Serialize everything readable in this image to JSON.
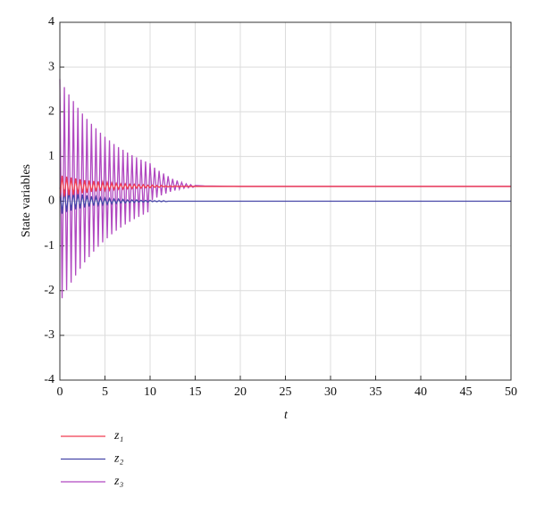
{
  "chart_data": {
    "type": "line",
    "x_label": "t",
    "y_label": "State variables",
    "x": [
      0,
      0.25,
      0.5,
      0.75,
      1,
      1.25,
      1.5,
      1.75,
      2,
      2.25,
      2.5,
      2.75,
      3,
      3.25,
      3.5,
      3.75,
      4,
      4.25,
      4.5,
      4.75,
      5,
      5.25,
      5.5,
      5.75,
      6,
      6.25,
      6.5,
      6.75,
      7,
      7.25,
      7.5,
      7.75,
      8,
      8.25,
      8.5,
      8.75,
      9,
      9.25,
      9.5,
      9.75,
      10,
      10.25,
      10.5,
      10.75,
      11,
      11.25,
      11.5,
      11.75,
      12,
      12.25,
      12.5,
      12.75,
      13,
      13.25,
      13.5,
      13.75,
      14,
      14.25,
      14.5,
      14.75,
      15,
      16,
      20,
      30,
      40,
      50
    ],
    "series": [
      {
        "name": "z₁",
        "color": "#f03c50",
        "values": [
          0.08,
          0.57,
          0.1,
          0.55,
          0.13,
          0.53,
          0.14,
          0.51,
          0.16,
          0.49,
          0.18,
          0.47,
          0.19,
          0.46,
          0.21,
          0.45,
          0.22,
          0.44,
          0.23,
          0.43,
          0.24,
          0.42,
          0.25,
          0.41,
          0.26,
          0.4,
          0.27,
          0.39,
          0.27,
          0.39,
          0.28,
          0.38,
          0.28,
          0.38,
          0.29,
          0.37,
          0.29,
          0.37,
          0.3,
          0.36,
          0.3,
          0.36,
          0.31,
          0.35,
          0.31,
          0.35,
          0.32,
          0.34,
          0.32,
          0.34,
          0.32,
          0.34,
          0.33,
          0.33,
          0.33,
          0.33,
          0.33,
          0.33,
          0.33,
          0.33,
          0.33,
          0.33,
          0.33,
          0.33,
          0.33,
          0.33
        ]
      },
      {
        "name": "z₂",
        "color": "#4646a8",
        "values": [
          0.3,
          -0.28,
          0.26,
          -0.24,
          0.23,
          -0.21,
          0.2,
          -0.18,
          0.17,
          -0.16,
          0.15,
          -0.14,
          0.13,
          -0.12,
          0.11,
          -0.1,
          0.1,
          -0.09,
          0.08,
          -0.08,
          0.07,
          -0.07,
          0.06,
          -0.06,
          0.05,
          -0.05,
          0.05,
          -0.04,
          0.04,
          -0.04,
          0.03,
          -0.03,
          0.03,
          -0.03,
          0.03,
          -0.02,
          0.02,
          -0.02,
          0.02,
          -0.02,
          0.02,
          -0.01,
          0.01,
          -0.01,
          0.01,
          -0.01,
          0.01,
          -0.01,
          0,
          0,
          0,
          0,
          0,
          0,
          0,
          0,
          0,
          0,
          0,
          0,
          0,
          0,
          0,
          0,
          0,
          0
        ]
      },
      {
        "name": "z₃",
        "color": "#b048c0",
        "values": [
          2.73,
          -2.17,
          2.55,
          -1.99,
          2.39,
          -1.82,
          2.24,
          -1.66,
          2.09,
          -1.51,
          1.96,
          -1.37,
          1.84,
          -1.25,
          1.73,
          -1.13,
          1.63,
          -1.02,
          1.53,
          -0.92,
          1.44,
          -0.83,
          1.36,
          -0.74,
          1.28,
          -0.66,
          1.21,
          -0.59,
          1.15,
          -0.52,
          1.09,
          -0.46,
          1.03,
          -0.4,
          0.98,
          -0.35,
          0.93,
          -0.3,
          0.89,
          -0.25,
          0.85,
          0.02,
          0.75,
          0.08,
          0.68,
          0.13,
          0.62,
          0.17,
          0.56,
          0.21,
          0.5,
          0.24,
          0.46,
          0.27,
          0.42,
          0.29,
          0.39,
          0.3,
          0.37,
          0.31,
          0.35,
          0.34,
          0.33,
          0.33,
          0.33,
          0.33
        ]
      }
    ],
    "xlim": [
      0,
      50
    ],
    "xticks": [
      0,
      5,
      10,
      15,
      20,
      25,
      30,
      35,
      40,
      45,
      50
    ],
    "ylim": [
      -4,
      4
    ],
    "yticks": [
      -4,
      -3,
      -2,
      -1,
      0,
      1,
      2,
      3,
      4
    ],
    "grid": true
  }
}
